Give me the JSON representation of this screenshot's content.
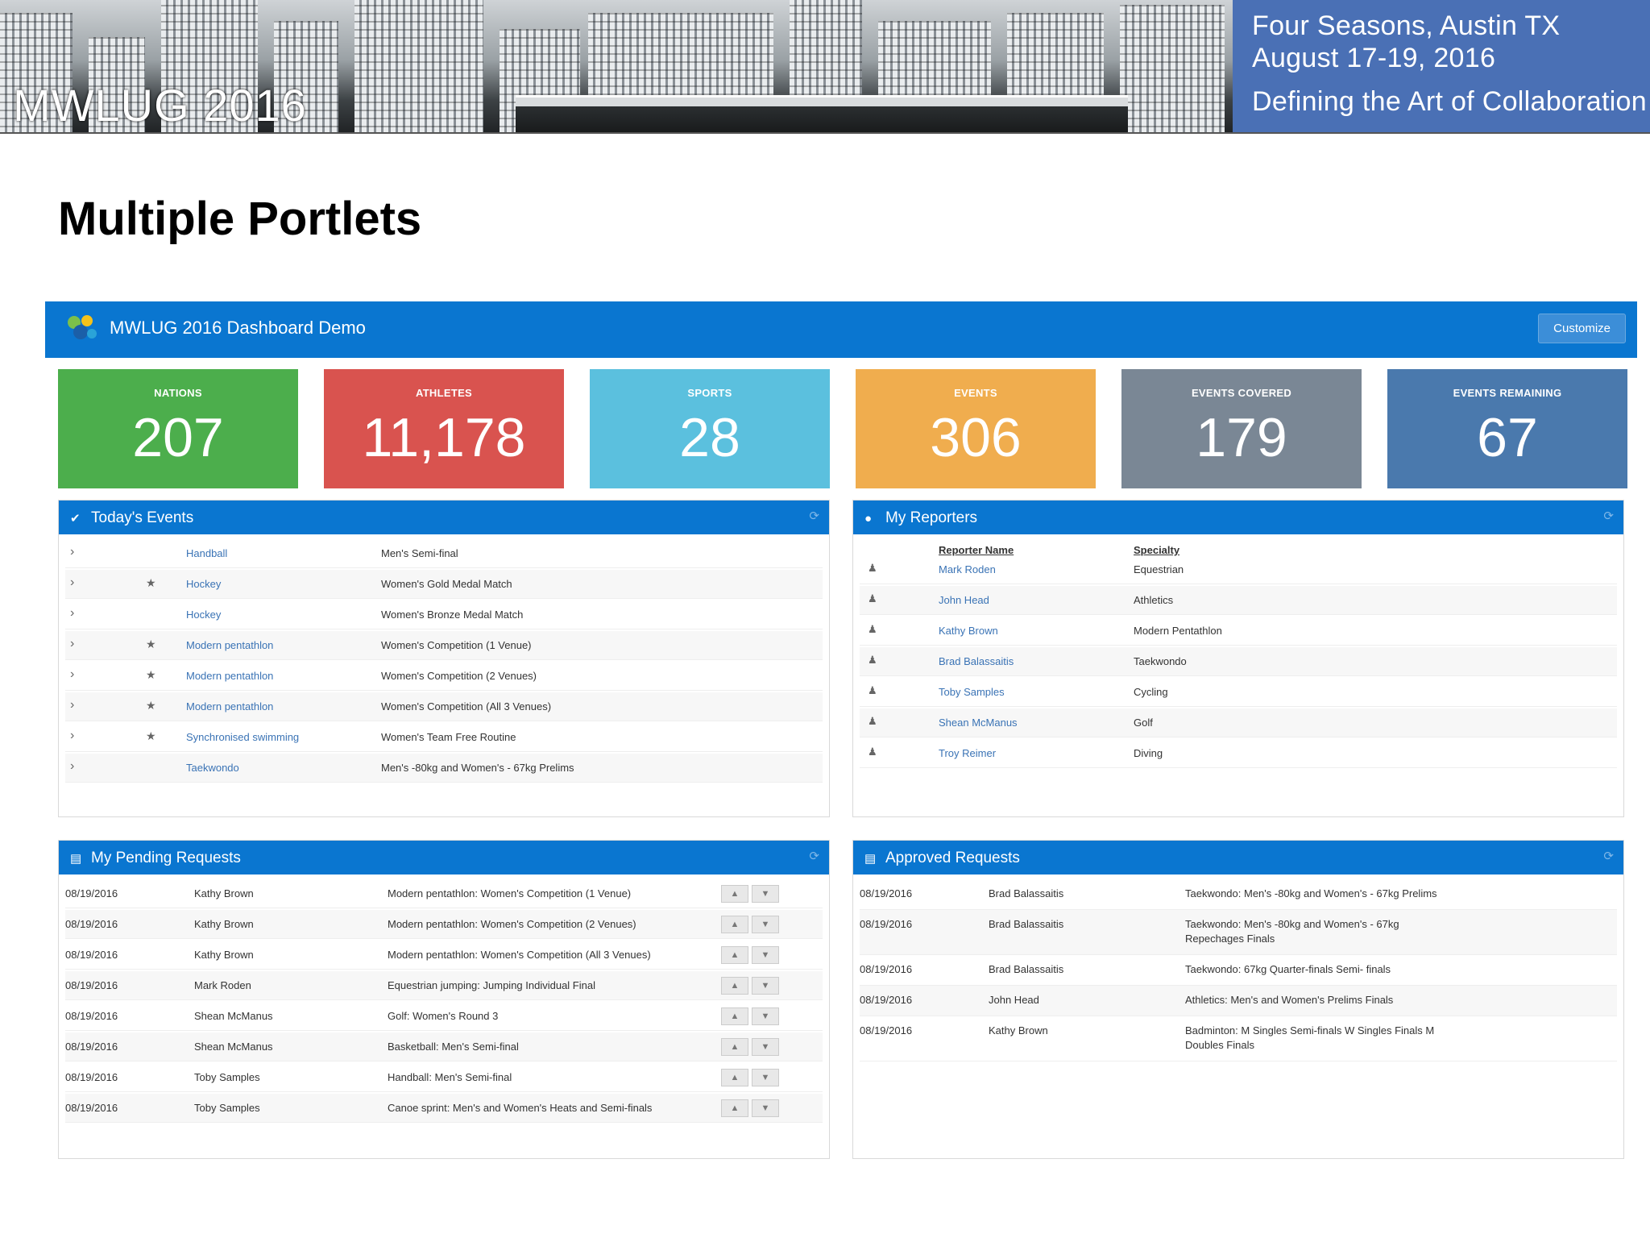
{
  "banner": {
    "logo": "MWLUG 2016",
    "venue": "Four Seasons, Austin TX",
    "dates": "August 17-19, 2016",
    "tagline": "Defining the Art of Collaboration"
  },
  "slide_title": "Multiple Portlets",
  "app": {
    "title": "MWLUG 2016 Dashboard Demo",
    "customize_label": "Customize"
  },
  "tiles": [
    {
      "label": "NATIONS",
      "value": "207",
      "color": "#4cae4c"
    },
    {
      "label": "ATHLETES",
      "value": "11,178",
      "color": "#d9534f"
    },
    {
      "label": "SPORTS",
      "value": "28",
      "color": "#5bc0de"
    },
    {
      "label": "EVENTS",
      "value": "306",
      "color": "#f0ad4e"
    },
    {
      "label": "EVENTS COVERED",
      "value": "179",
      "color": "#7a8795"
    },
    {
      "label": "EVENTS REMAINING",
      "value": "67",
      "color": "#4a79ad"
    }
  ],
  "todays_events": {
    "title": "Today's Events",
    "rows": [
      {
        "sport": "Handball",
        "event": "Men's Semi-final",
        "starred": false
      },
      {
        "sport": "Hockey",
        "event": "Women's Gold Medal Match",
        "starred": true
      },
      {
        "sport": "Hockey",
        "event": "Women's Bronze Medal Match",
        "starred": false
      },
      {
        "sport": "Modern pentathlon",
        "event": "Women's Competition (1 Venue)",
        "starred": true
      },
      {
        "sport": "Modern pentathlon",
        "event": "Women's Competition (2 Venues)",
        "starred": true
      },
      {
        "sport": "Modern pentathlon",
        "event": "Women's Competition (All 3 Venues)",
        "starred": true
      },
      {
        "sport": "Synchronised swimming",
        "event": "Women's Team Free Routine",
        "starred": true
      },
      {
        "sport": "Taekwondo",
        "event": "Men's -80kg and Women's - 67kg Prelims",
        "starred": false
      }
    ]
  },
  "reporters": {
    "title": "My Reporters",
    "col_name": "Reporter Name",
    "col_specialty": "Specialty",
    "rows": [
      {
        "name": "Mark Roden",
        "specialty": "Equestrian"
      },
      {
        "name": "John Head",
        "specialty": "Athletics"
      },
      {
        "name": "Kathy Brown",
        "specialty": "Modern Pentathlon"
      },
      {
        "name": "Brad Balassaitis",
        "specialty": "Taekwondo"
      },
      {
        "name": "Toby Samples",
        "specialty": "Cycling"
      },
      {
        "name": "Shean McManus",
        "specialty": "Golf"
      },
      {
        "name": "Troy Reimer",
        "specialty": "Diving"
      }
    ]
  },
  "pending": {
    "title": "My Pending Requests",
    "rows": [
      {
        "date": "08/19/2016",
        "name": "Kathy Brown",
        "event": "Modern pentathlon: Women's Competition (1 Venue)"
      },
      {
        "date": "08/19/2016",
        "name": "Kathy Brown",
        "event": "Modern pentathlon: Women's Competition (2 Venues)"
      },
      {
        "date": "08/19/2016",
        "name": "Kathy Brown",
        "event": "Modern pentathlon: Women's Competition (All 3 Venues)"
      },
      {
        "date": "08/19/2016",
        "name": "Mark Roden",
        "event": "Equestrian jumping: Jumping Individual Final"
      },
      {
        "date": "08/19/2016",
        "name": "Shean McManus",
        "event": "Golf: Women's Round 3"
      },
      {
        "date": "08/19/2016",
        "name": "Shean McManus",
        "event": "Basketball: Men's Semi-final"
      },
      {
        "date": "08/19/2016",
        "name": "Toby Samples",
        "event": "Handball: Men's Semi-final"
      },
      {
        "date": "08/19/2016",
        "name": "Toby Samples",
        "event": "Canoe sprint: Men's and Women's Heats and Semi-finals"
      }
    ]
  },
  "approved": {
    "title": "Approved Requests",
    "rows": [
      {
        "date": "08/19/2016",
        "name": "Brad Balassaitis",
        "event": "Taekwondo: Men's -80kg and Women's - 67kg Prelims"
      },
      {
        "date": "08/19/2016",
        "name": "Brad Balassaitis",
        "event": "Taekwondo: Men's -80kg and Women's - 67kg",
        "event2": "Repechages Finals"
      },
      {
        "date": "08/19/2016",
        "name": "Brad Balassaitis",
        "event": "Taekwondo: 67kg Quarter-finals Semi- finals"
      },
      {
        "date": "08/19/2016",
        "name": "John Head",
        "event": "Athletics: Men's and Women's Prelims Finals"
      },
      {
        "date": "08/19/2016",
        "name": "Kathy Brown",
        "event": "Badminton: M Singles Semi-finals W Singles Finals M",
        "event2": "Doubles Finals"
      }
    ]
  }
}
